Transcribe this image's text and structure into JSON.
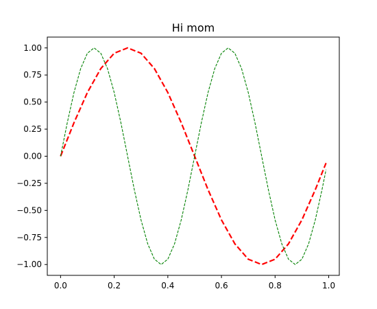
{
  "chart_data": {
    "type": "line",
    "title": "Hi mom",
    "xlabel": "",
    "ylabel": "",
    "xlim": [
      -0.0495,
      1.0395
    ],
    "ylim": [
      -1.1,
      1.1
    ],
    "grid": false,
    "legend": "none",
    "xticks": [
      0.0,
      0.2,
      0.4,
      0.6,
      0.8,
      1.0
    ],
    "xtick_labels": [
      "0.0",
      "0.2",
      "0.4",
      "0.6",
      "0.8",
      "1.0"
    ],
    "yticks": [
      -1.0,
      -0.75,
      -0.5,
      -0.25,
      0.0,
      0.25,
      0.5,
      0.75,
      1.0
    ],
    "ytick_labels": [
      "−1.00",
      "−0.75",
      "−0.50",
      "−0.25",
      "0.00",
      "0.25",
      "0.50",
      "0.75",
      "1.00"
    ],
    "series": [
      {
        "color": "#ff0000",
        "linestyle": "dashed",
        "x": [
          0.0,
          0.05,
          0.1,
          0.15,
          0.2,
          0.25,
          0.3,
          0.35,
          0.4,
          0.45,
          0.5,
          0.55,
          0.6,
          0.65,
          0.7,
          0.75,
          0.8,
          0.85,
          0.9,
          0.95,
          0.99
        ],
        "y": [
          0.0,
          0.309,
          0.588,
          0.809,
          0.951,
          1.0,
          0.951,
          0.809,
          0.588,
          0.309,
          0.0,
          -0.309,
          -0.588,
          -0.809,
          -0.951,
          -1.0,
          -0.951,
          -0.809,
          -0.588,
          -0.309,
          -0.063
        ]
      },
      {
        "color": "#008000",
        "linestyle": "dashed",
        "x": [
          0.0,
          0.025,
          0.05,
          0.075,
          0.1,
          0.125,
          0.15,
          0.175,
          0.2,
          0.225,
          0.25,
          0.275,
          0.3,
          0.325,
          0.35,
          0.375,
          0.4,
          0.425,
          0.45,
          0.475,
          0.5,
          0.525,
          0.55,
          0.575,
          0.6,
          0.625,
          0.65,
          0.675,
          0.7,
          0.725,
          0.75,
          0.775,
          0.8,
          0.825,
          0.85,
          0.875,
          0.9,
          0.925,
          0.95,
          0.975,
          0.99
        ],
        "y": [
          0.0,
          0.309,
          0.588,
          0.809,
          0.951,
          1.0,
          0.951,
          0.809,
          0.588,
          0.309,
          0.0,
          -0.309,
          -0.588,
          -0.809,
          -0.951,
          -1.0,
          -0.951,
          -0.809,
          -0.588,
          -0.309,
          0.0,
          0.309,
          0.588,
          0.809,
          0.951,
          1.0,
          0.951,
          0.809,
          0.588,
          0.309,
          0.0,
          -0.309,
          -0.588,
          -0.809,
          -0.951,
          -1.0,
          -0.951,
          -0.809,
          -0.588,
          -0.309,
          -0.125
        ]
      }
    ]
  }
}
